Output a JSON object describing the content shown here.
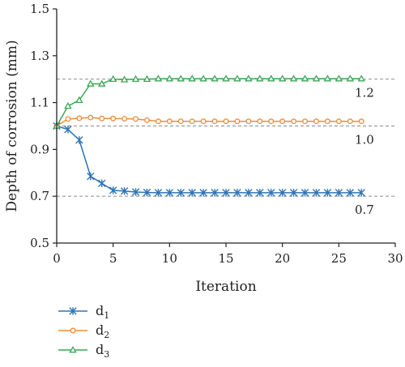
{
  "chart_data": {
    "type": "line",
    "xlabel": "Iteration",
    "ylabel": "Depth of corrosion (mm)",
    "xlim": [
      0,
      30
    ],
    "ylim": [
      0.5,
      1.5
    ],
    "x_ticks": [
      "0",
      "5",
      "10",
      "15",
      "20",
      "25",
      "30"
    ],
    "y_ticks": [
      "0.5",
      "0.7",
      "0.9",
      "1.1",
      "1.3",
      "1.5"
    ],
    "x_tick_values": [
      0,
      5,
      10,
      15,
      20,
      25,
      30
    ],
    "y_tick_values": [
      0.5,
      0.7,
      0.9,
      1.1,
      1.3,
      1.5
    ],
    "grid": false,
    "legend_position": "bottom-left (below plot)",
    "reference_lines": [
      {
        "value": 1.2,
        "label": "1.2"
      },
      {
        "value": 1.0,
        "label": "1.0"
      },
      {
        "value": 0.7,
        "label": "0.7"
      }
    ],
    "x": [
      0,
      1,
      2,
      3,
      4,
      5,
      6,
      7,
      8,
      9,
      10,
      11,
      12,
      13,
      14,
      15,
      16,
      17,
      18,
      19,
      20,
      21,
      22,
      23,
      24,
      25,
      26,
      27
    ],
    "series": [
      {
        "name": "d",
        "subscript": "1",
        "color": "#2e75b6",
        "marker": "star",
        "values": [
          1.0,
          0.985,
          0.94,
          0.785,
          0.755,
          0.725,
          0.722,
          0.718,
          0.716,
          0.715,
          0.715,
          0.715,
          0.715,
          0.715,
          0.715,
          0.715,
          0.715,
          0.715,
          0.715,
          0.715,
          0.715,
          0.715,
          0.715,
          0.715,
          0.715,
          0.715,
          0.715,
          0.715
        ]
      },
      {
        "name": "d",
        "subscript": "2",
        "color": "#ed8d3c",
        "marker": "circle",
        "values": [
          1.0,
          1.03,
          1.033,
          1.036,
          1.032,
          1.032,
          1.031,
          1.03,
          1.025,
          1.02,
          1.02,
          1.02,
          1.02,
          1.02,
          1.02,
          1.02,
          1.02,
          1.02,
          1.02,
          1.02,
          1.02,
          1.02,
          1.02,
          1.02,
          1.02,
          1.02,
          1.02,
          1.02
        ]
      },
      {
        "name": "d",
        "subscript": "3",
        "color": "#3aa655",
        "marker": "triangle",
        "values": [
          1.0,
          1.085,
          1.11,
          1.18,
          1.18,
          1.2,
          1.198,
          1.2,
          1.2,
          1.202,
          1.202,
          1.202,
          1.202,
          1.202,
          1.202,
          1.202,
          1.202,
          1.202,
          1.202,
          1.202,
          1.202,
          1.202,
          1.202,
          1.202,
          1.202,
          1.202,
          1.202,
          1.202
        ]
      }
    ]
  },
  "colors": {
    "axis": "#222222",
    "reference_line": "#9a9a9a"
  }
}
